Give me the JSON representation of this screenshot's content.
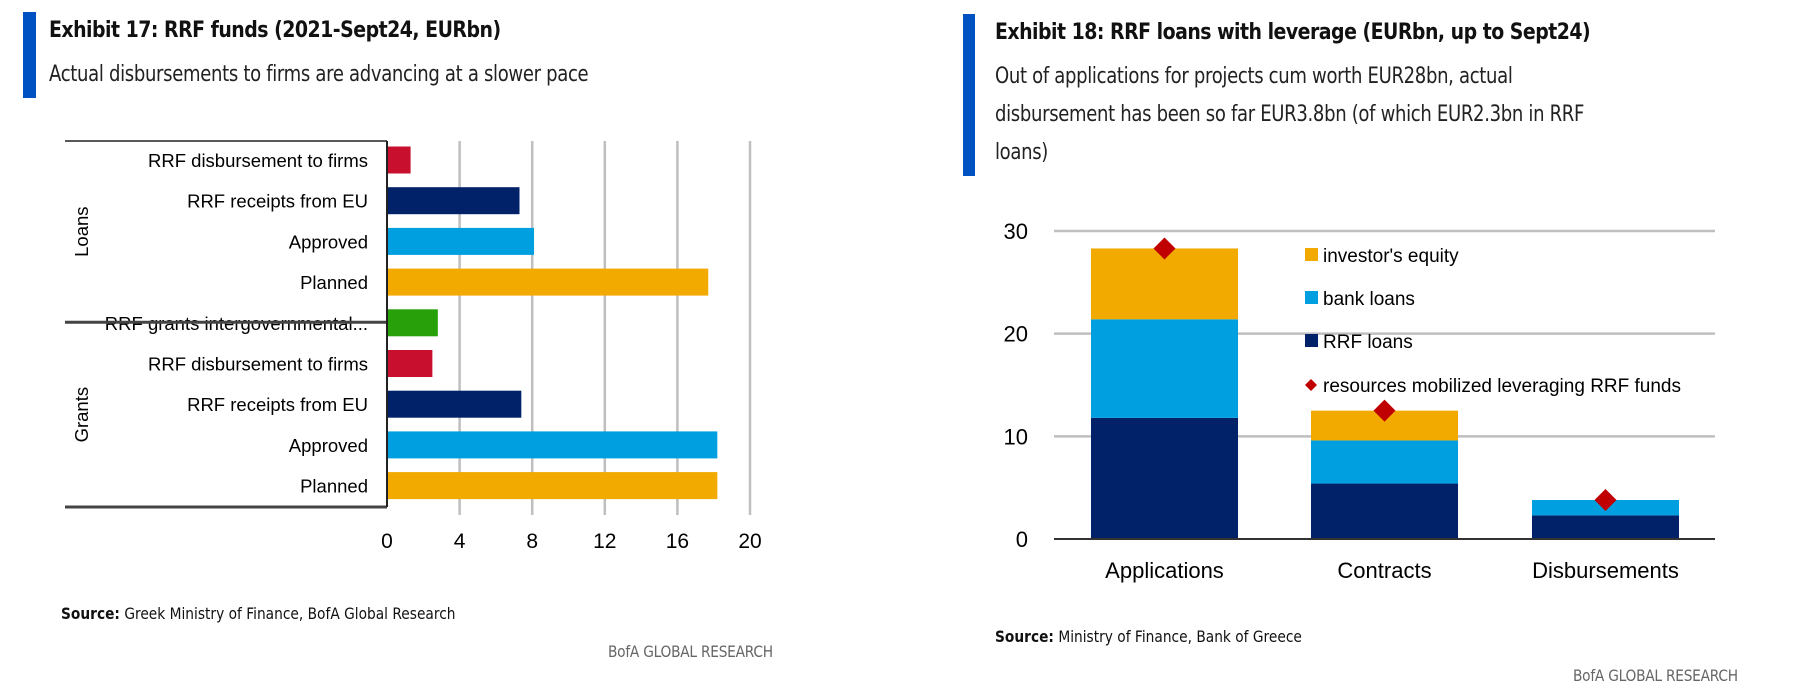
{
  "exhibits": [
    {
      "title": "Exhibit 17: RRF funds (2021-Sept24, EURbn)",
      "subtitle": "Actual disbursements to firms are advancing at a slower pace",
      "source_label": "Source:",
      "source_text": "Greek Ministry of Finance, BofA Global Research",
      "brand": "BofA GLOBAL RESEARCH"
    },
    {
      "title": "Exhibit 18: RRF loans with leverage (EURbn, up to Sept24)",
      "subtitle_lines": [
        "Out of applications for projects cum worth EUR28bn, actual",
        "disbursement has been so far EUR3.8bn (of which EUR2.3bn in RRF",
        "loans)"
      ],
      "source_label": "Source:",
      "source_text": "Ministry of Finance, Bank of Greece",
      "brand": "BofA GLOBAL RESEARCH"
    }
  ],
  "colors": {
    "accent": "#0052C2",
    "red": "#C8102E",
    "navy": "#012169",
    "light_blue": "#009FDF",
    "gold": "#F2A900",
    "green": "#28A00A",
    "diamond": "#C00000",
    "grid": "#BFBFBF"
  },
  "chart_data": [
    {
      "type": "bar",
      "orientation": "horizontal",
      "title": "Exhibit 17: RRF funds (2021-Sept24, EURbn)",
      "xlabel": "",
      "ylabel": "",
      "xlim": [
        0,
        20
      ],
      "xticks": [
        0,
        4,
        8,
        12,
        16,
        20
      ],
      "grid": true,
      "groups": [
        {
          "name": "Loans",
          "bars": [
            {
              "label": "RRF disbursement to firms",
              "value": 1.3,
              "color": "red"
            },
            {
              "label": "RRF receipts from EU",
              "value": 7.3,
              "color": "navy"
            },
            {
              "label": "Approved",
              "value": 8.1,
              "color": "light_blue"
            },
            {
              "label": "Planned",
              "value": 17.7,
              "color": "gold"
            }
          ]
        },
        {
          "name": "Grants",
          "bars": [
            {
              "label": "RRF grants intergovernmental...",
              "value": 2.8,
              "color": "green"
            },
            {
              "label": "RRF disbursement to firms",
              "value": 2.5,
              "color": "red"
            },
            {
              "label": "RRF receipts from EU",
              "value": 7.4,
              "color": "navy"
            },
            {
              "label": "Approved",
              "value": 18.2,
              "color": "light_blue"
            },
            {
              "label": "Planned",
              "value": 18.2,
              "color": "gold"
            }
          ]
        }
      ]
    },
    {
      "type": "bar",
      "stacked": true,
      "title": "Exhibit 18: RRF loans with leverage (EURbn, up to Sept24)",
      "categories": [
        "Applications",
        "Contracts",
        "Disbursements"
      ],
      "ylim": [
        0,
        30
      ],
      "yticks": [
        0,
        10,
        20,
        30
      ],
      "grid": true,
      "legend_position": "top-right (inside plot)",
      "series": [
        {
          "name": "RRF loans",
          "values": [
            11.8,
            5.4,
            2.3
          ],
          "color": "navy"
        },
        {
          "name": "bank loans",
          "values": [
            9.6,
            4.2,
            1.5
          ],
          "color": "light_blue"
        },
        {
          "name": "investor's equity",
          "values": [
            6.9,
            2.9,
            0.0
          ],
          "color": "gold"
        }
      ],
      "markers": {
        "name": "resources mobilized leveraging RRF funds",
        "values": [
          28.3,
          12.5,
          3.8
        ],
        "color": "diamond",
        "shape": "diamond"
      },
      "legend": [
        "investor's equity",
        "bank loans",
        "RRF loans",
        "resources mobilized leveraging RRF funds"
      ]
    }
  ]
}
